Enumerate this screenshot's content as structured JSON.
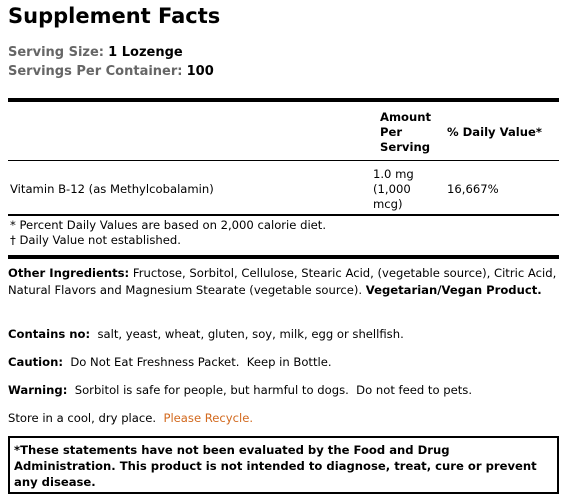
{
  "header": {
    "title": "Supplement Facts"
  },
  "serving": {
    "size_label": "Serving Size:",
    "size_value": "1 Lozenge",
    "per_container_label": "Servings Per Container:",
    "per_container_value": "100"
  },
  "table": {
    "columns": [
      "Amount Per Serving",
      "% Daily Value*"
    ],
    "rows": [
      [
        "Vitamin B-12 (as Methylcobalamin)",
        "1.0 mg (1,000 mcg)",
        "16,667%"
      ]
    ]
  },
  "footnotes": [
    "* Percent Daily Values are based on 2,000 calorie diet.",
    "† Daily Value not established."
  ],
  "other_ingredients": {
    "label": "Other Ingredients:",
    "text": "Fructose, Sorbitol, Cellulose, Stearic Acid, (vegetable source), Citric Acid, Natural Flavors and Magnesium Stearate (vegetable source).",
    "emphasis": "Vegetarian/Vegan Product."
  },
  "contains_no": {
    "label": "Contains no:",
    "text": "salt, yeast, wheat, gluten, soy, milk, egg or shellfish."
  },
  "caution": {
    "label": "Caution:",
    "text": "Do Not Eat Freshness Packet.  Keep in Bottle."
  },
  "warning": {
    "label": "Warning:",
    "text": "Sorbitol is safe for people, but harmful to dogs.  Do not feed to pets."
  },
  "storage": {
    "text": "Store in a cool, dry place.",
    "link": "Please Recycle."
  },
  "disclaimer": "*These statements have not been evaluated by the Food and Drug Administration.  This product is not intended to diagnose, treat, cure or prevent any disease."
}
